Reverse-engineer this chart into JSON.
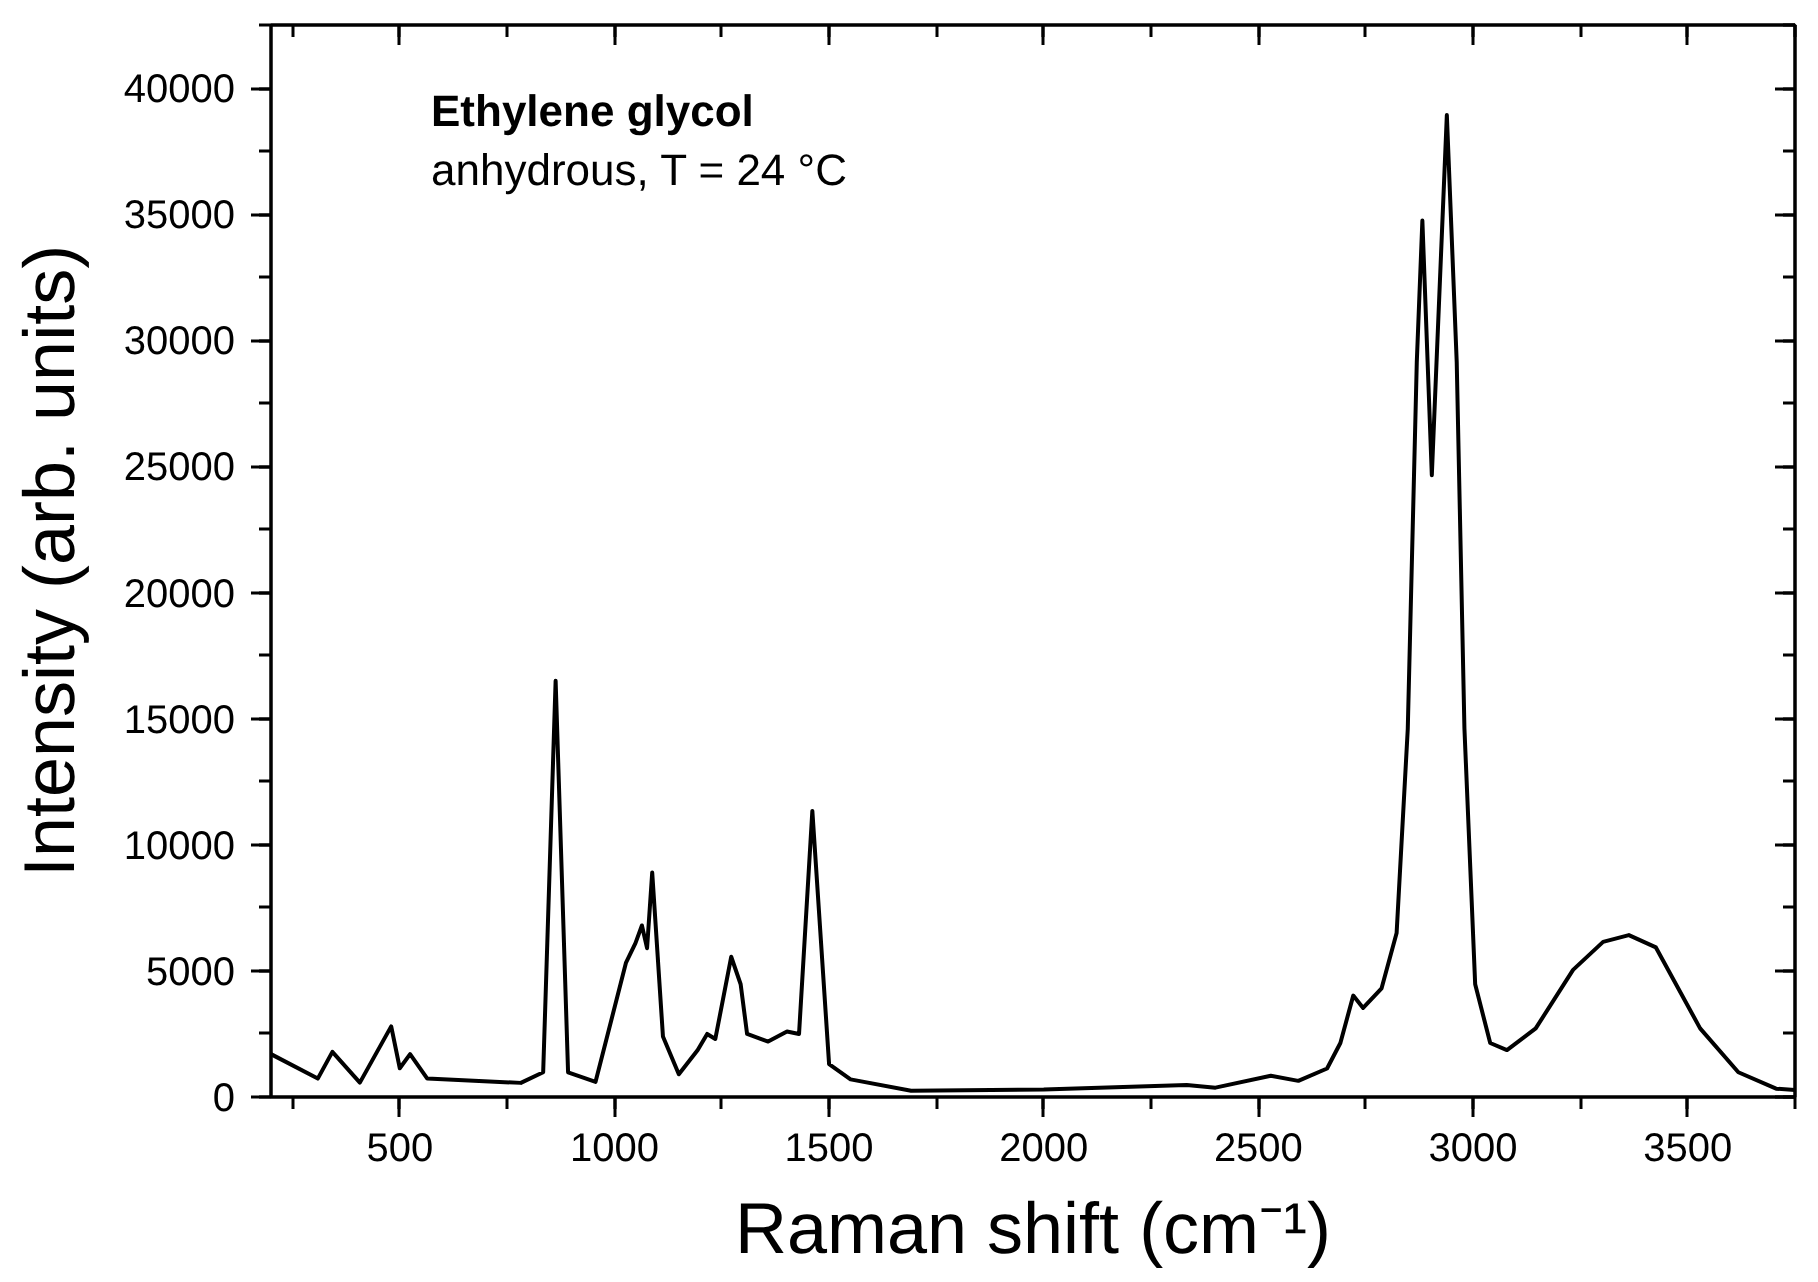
{
  "chart_data": {
    "type": "line",
    "xlabel": "Raman shift (cm⁻¹)",
    "ylabel": "Intensity (arb. units)",
    "annotations": [
      "Ethylene glycol",
      "anhydrous, T = 24 °C"
    ],
    "xlim": [
      200,
      3750
    ],
    "ylim": [
      0,
      42500
    ],
    "xticks": [
      500,
      1000,
      1500,
      2000,
      2500,
      3000,
      3500
    ],
    "yticks": [
      0,
      5000,
      10000,
      15000,
      20000,
      25000,
      30000,
      35000,
      40000
    ],
    "grid": false,
    "marker": "none",
    "line_style": "solid",
    "series": [
      {
        "color": "#000000",
        "x": [
          200,
          309,
          343,
          407,
          480,
          500,
          524,
          564,
          782,
          834,
          863,
          892,
          956,
          1027,
          1049,
          1064,
          1076,
          1088,
          1113,
          1150,
          1194,
          1216,
          1235,
          1272,
          1294,
          1309,
          1358,
          1402,
          1430,
          1461,
          1500,
          1550,
          1691,
          2000,
          2333,
          2400,
          2529,
          2593,
          2660,
          2691,
          2721,
          2744,
          2787,
          2822,
          2848,
          2869,
          2882,
          2904,
          2939,
          2962,
          2980,
          3005,
          3040,
          3079,
          3146,
          3233,
          3303,
          3363,
          3426,
          3529,
          3618,
          3706,
          3750
        ],
        "values": [
          1700,
          730,
          1790,
          570,
          2800,
          1140,
          1700,
          730,
          560,
          980,
          16500,
          980,
          600,
          5330,
          6100,
          6800,
          5900,
          8900,
          2400,
          900,
          1860,
          2500,
          2300,
          5560,
          4470,
          2500,
          2200,
          2600,
          2500,
          11340,
          1300,
          700,
          250,
          300,
          480,
          370,
          840,
          640,
          1130,
          2140,
          4020,
          3530,
          4310,
          6500,
          14600,
          29140,
          34750,
          24650,
          38930,
          29140,
          14600,
          4470,
          2140,
          1860,
          2720,
          5040,
          6150,
          6420,
          5930,
          2720,
          980,
          330,
          280
        ]
      }
    ]
  }
}
